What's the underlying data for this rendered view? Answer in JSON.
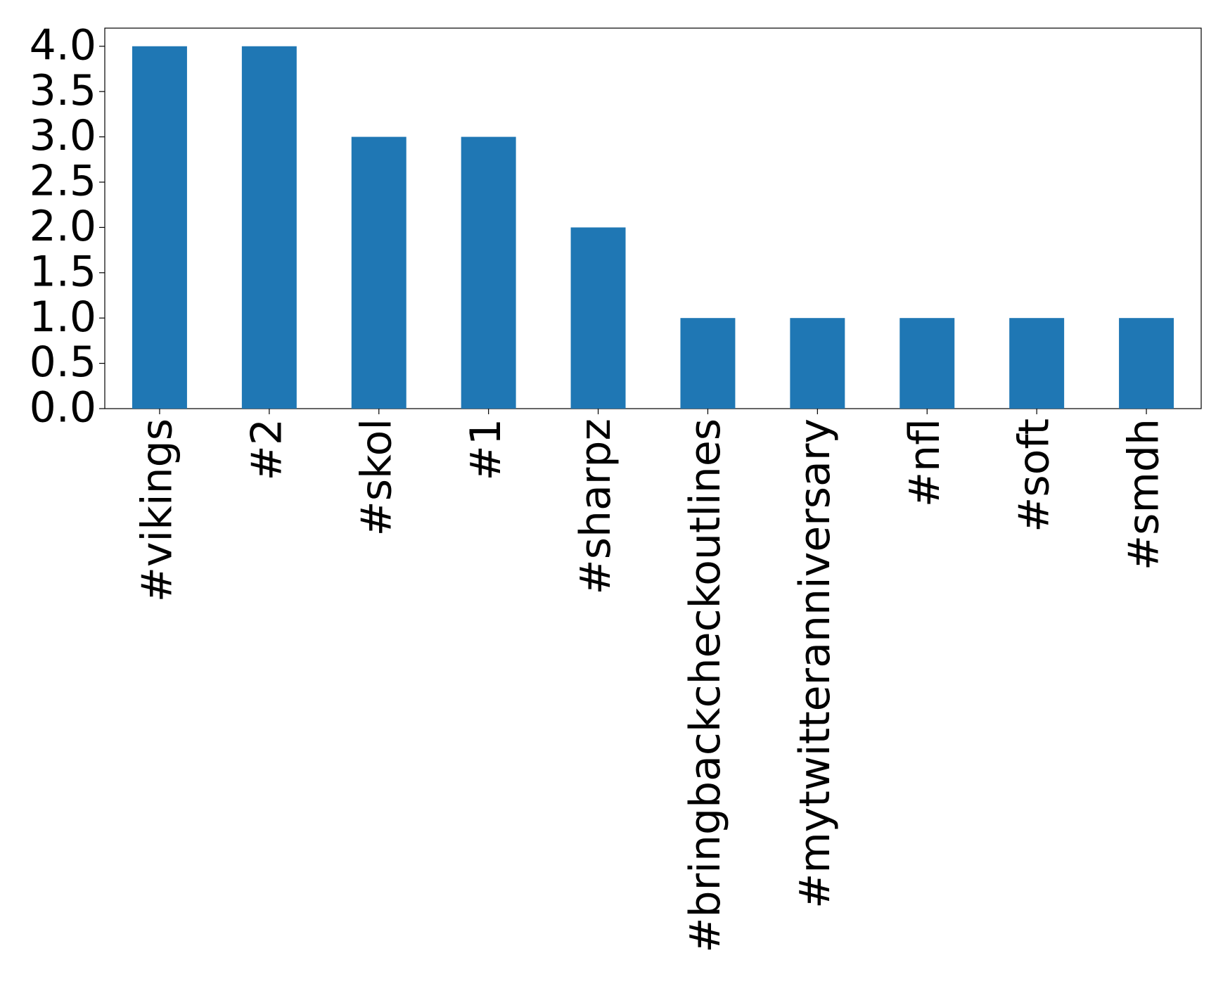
{
  "chart_data": {
    "type": "bar",
    "categories": [
      "#vikings",
      "#2",
      "#skol",
      "#1",
      "#sharpz",
      "#bringbackcheckoutlines",
      "#mytwitteranniversary",
      "#nfl",
      "#soft",
      "#smdh"
    ],
    "values": [
      4,
      4,
      3,
      3,
      2,
      1,
      1,
      1,
      1,
      1
    ],
    "color": "#1f77b4",
    "ylim": [
      0,
      4.2
    ],
    "yticks": [
      {
        "value": 0,
        "label": "0.0"
      },
      0.5,
      {
        "value": 1,
        "label": "1.0"
      },
      1.5,
      {
        "value": 2,
        "label": "2.0"
      },
      2.5,
      {
        "value": 3,
        "label": "3.0"
      },
      3.5,
      {
        "value": 4,
        "label": "4.0"
      }
    ],
    "grid": false
  }
}
